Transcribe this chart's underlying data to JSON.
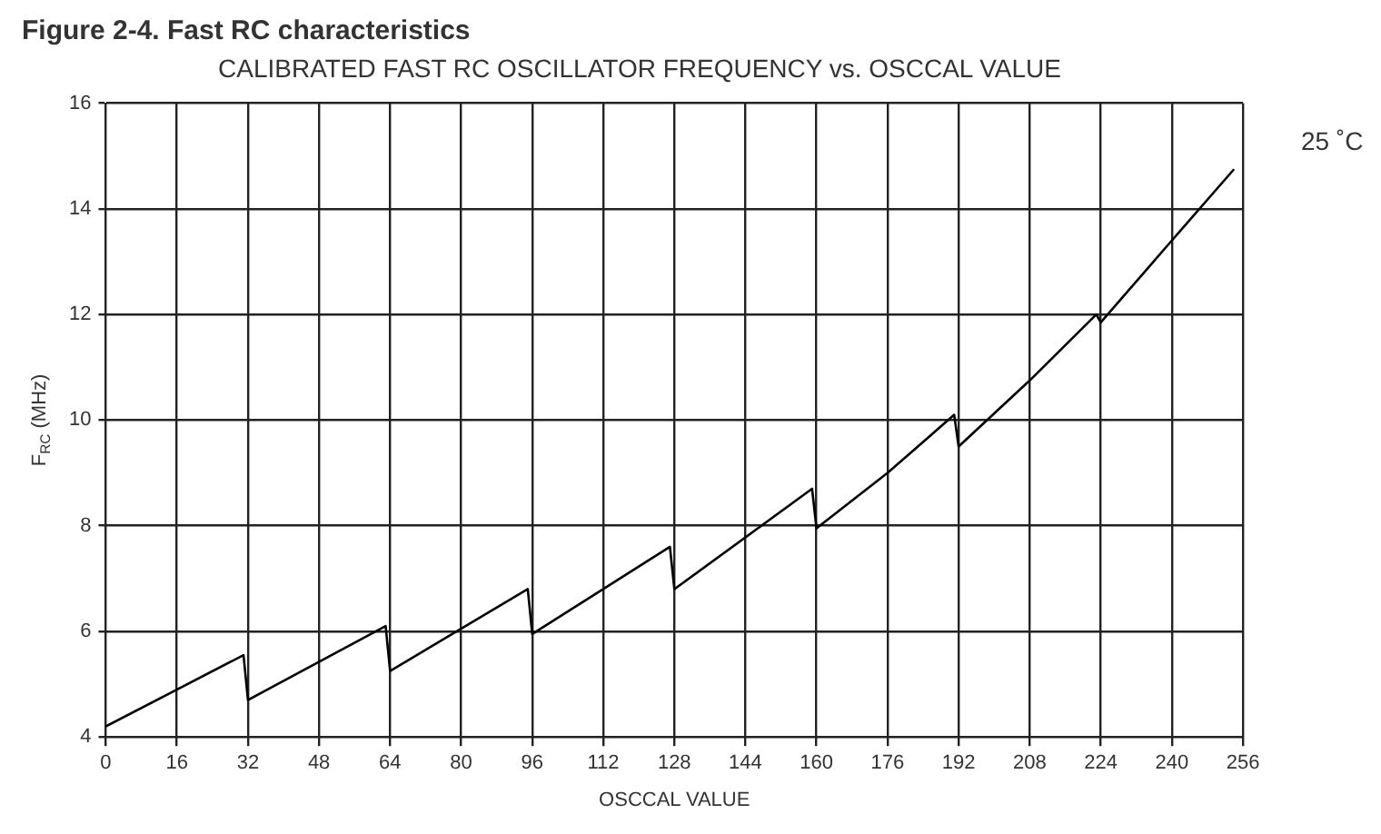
{
  "chart_data": {
    "type": "line",
    "title": "CALIBRATED FAST RC OSCILLATOR FREQUENCY vs. OSCCAL VALUE",
    "xlabel": "OSCCAL VALUE",
    "ylabel": "F$_{RC}$ (MHz)",
    "annotations": [
      "Figure 2-4. Fast RC characteristics",
      "25 ˚C"
    ],
    "series": [
      {
        "color": "#000000",
        "x": [
          0,
          31,
          32,
          63,
          64,
          95,
          96,
          127,
          128,
          159,
          160,
          176,
          191,
          192,
          208,
          223,
          224,
          240,
          254
        ],
        "values": [
          4.2,
          5.55,
          4.7,
          6.1,
          5.25,
          6.8,
          5.95,
          7.6,
          6.8,
          8.7,
          7.95,
          9.0,
          10.1,
          9.5,
          10.75,
          12.0,
          11.85,
          13.4,
          14.75
        ]
      }
    ],
    "xlim": [
      0,
      256
    ],
    "xticks": [
      0,
      16,
      32,
      48,
      64,
      80,
      96,
      112,
      128,
      144,
      160,
      176,
      192,
      208,
      224,
      240,
      256
    ],
    "ylim": [
      4,
      16
    ],
    "yticks": [
      4,
      6,
      8,
      10,
      12,
      14,
      16
    ],
    "grid": true,
    "legend": false,
    "marker": "none",
    "line_style": "solid"
  }
}
